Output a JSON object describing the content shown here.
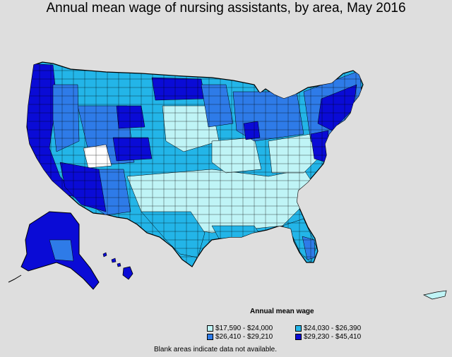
{
  "title": "Annual mean wage of nursing assistants, by area, May 2016",
  "legend": {
    "title": "Annual mean wage",
    "items": [
      {
        "label": "$17,590 - $24,000",
        "color": "#bff4f6"
      },
      {
        "label": "$24,030 - $26,390",
        "color": "#23b5e8"
      },
      {
        "label": "$26,410 - $29,210",
        "color": "#2e7be8"
      },
      {
        "label": "$29,230 - $45,410",
        "color": "#0a0bd6"
      }
    ]
  },
  "note": "Blank areas indicate data not available.",
  "colors": {
    "background": "#dedede",
    "border": "#000000",
    "blank": "#ffffff"
  }
}
